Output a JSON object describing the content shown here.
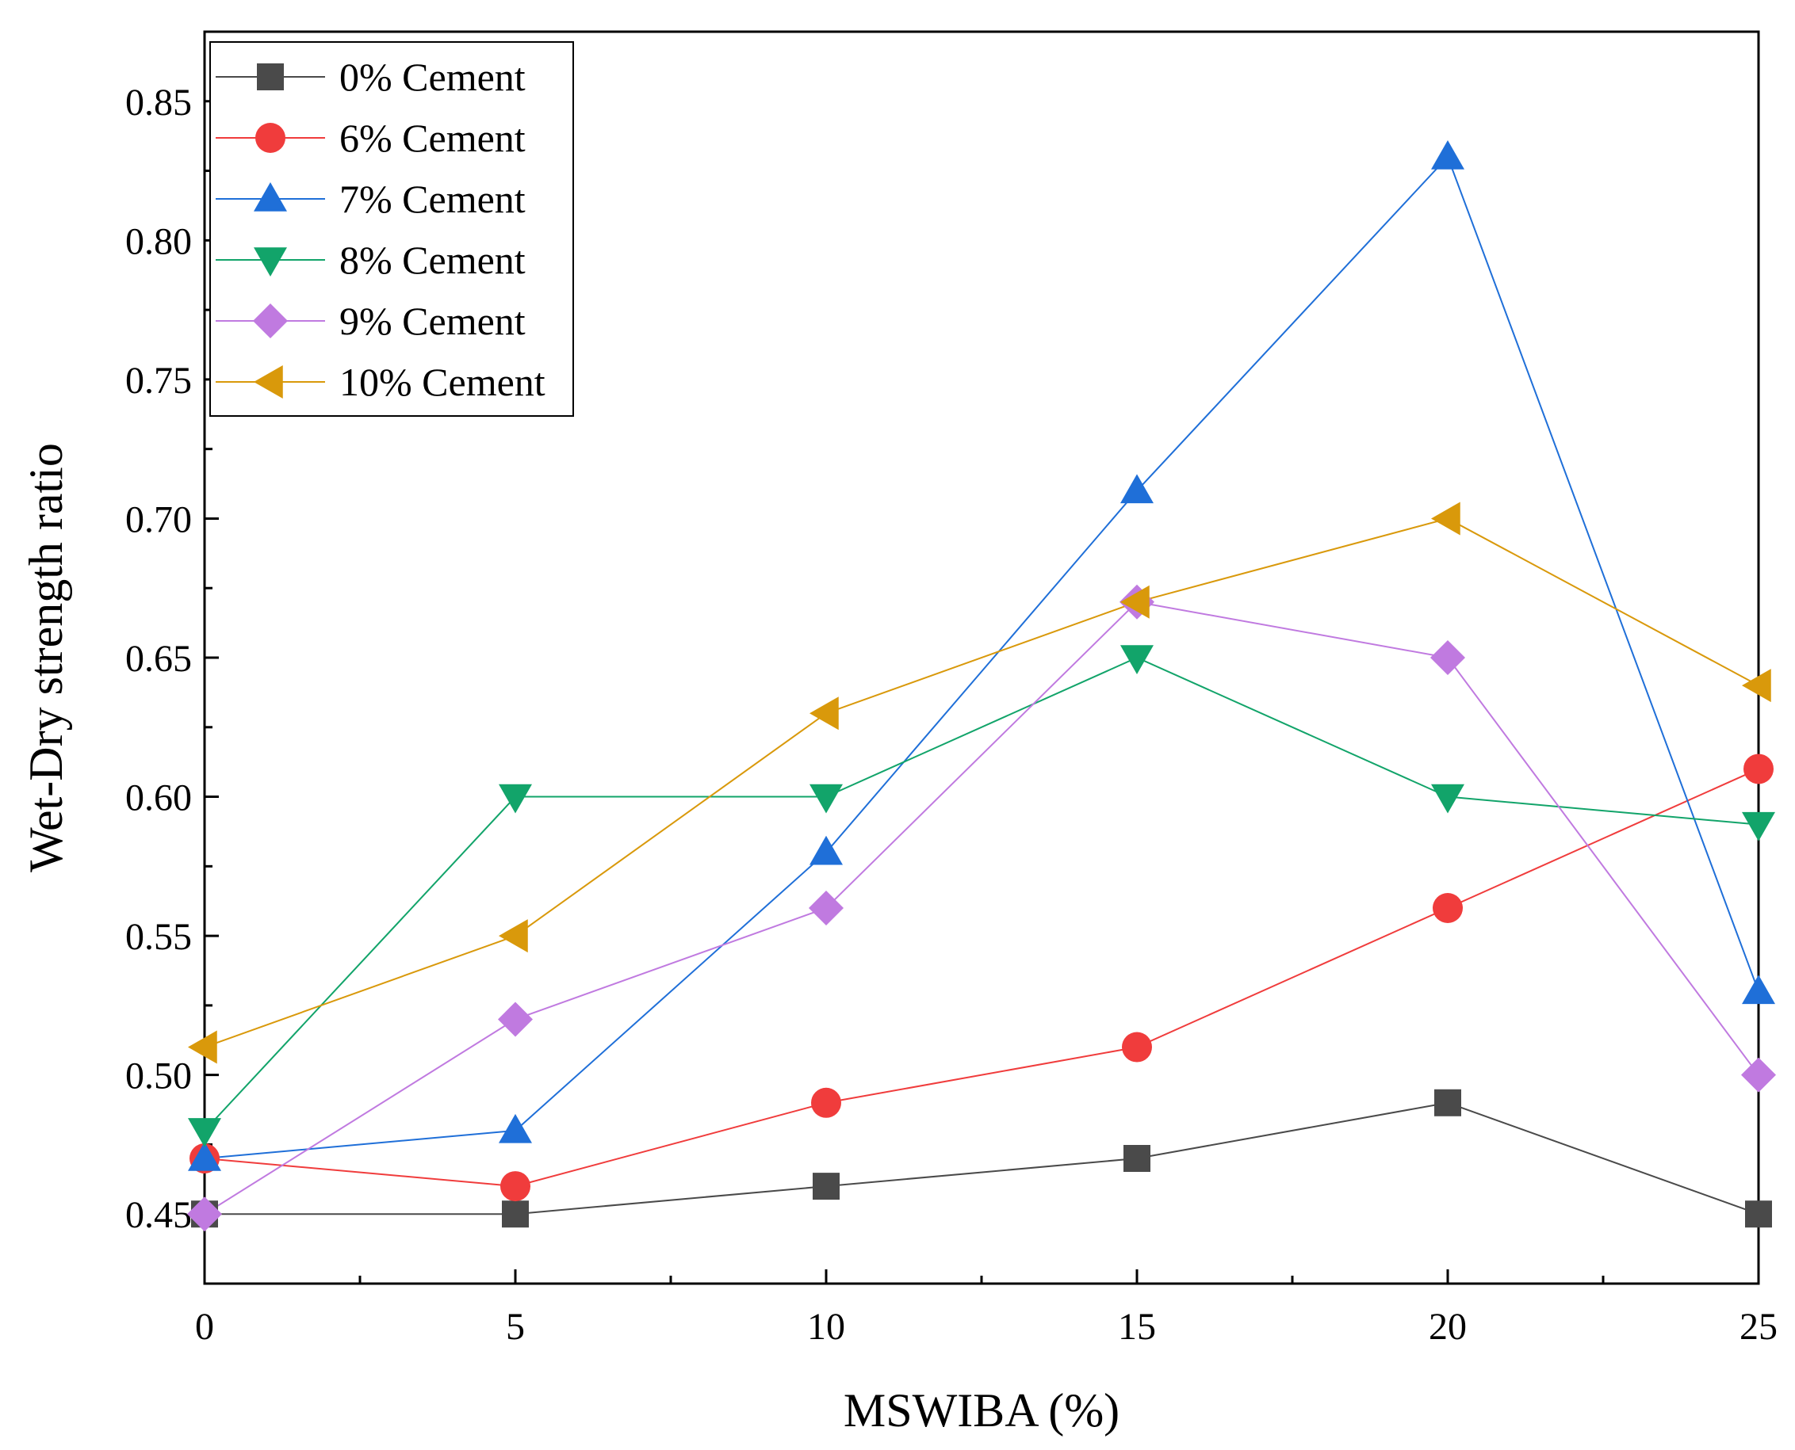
{
  "chart_data": {
    "type": "line",
    "title": "",
    "xlabel": "MSWIBA (%)",
    "ylabel": "Wet-Dry strength ratio",
    "x": [
      0,
      5,
      10,
      15,
      20,
      25
    ],
    "xlim": [
      0,
      25
    ],
    "ylim": [
      0.425,
      0.875
    ],
    "xticks": [
      0,
      5,
      10,
      15,
      20,
      25
    ],
    "yticks": [
      0.45,
      0.5,
      0.55,
      0.6,
      0.65,
      0.7,
      0.75,
      0.8,
      0.85
    ],
    "xtick_labels": [
      "0",
      "5",
      "10",
      "15",
      "20",
      "25"
    ],
    "ytick_labels": [
      "0.45",
      "0.50",
      "0.55",
      "0.60",
      "0.65",
      "0.70",
      "0.75",
      "0.80",
      "0.85"
    ],
    "grid": false,
    "legend_position": "top-left",
    "series": [
      {
        "name": "0% Cement",
        "marker": "square",
        "color": "#4a4a4a",
        "values": [
          0.45,
          0.45,
          0.46,
          0.47,
          0.49,
          0.45
        ]
      },
      {
        "name": "6% Cement",
        "marker": "circle",
        "color": "#f03c3c",
        "values": [
          0.47,
          0.46,
          0.49,
          0.51,
          0.56,
          0.61
        ]
      },
      {
        "name": "7% Cement",
        "marker": "triangle-up",
        "color": "#1f6fd8",
        "values": [
          0.47,
          0.48,
          0.58,
          0.71,
          0.83,
          0.53
        ]
      },
      {
        "name": "8% Cement",
        "marker": "triangle-down",
        "color": "#12a46a",
        "values": [
          0.48,
          0.6,
          0.6,
          0.65,
          0.6,
          0.59
        ]
      },
      {
        "name": "9% Cement",
        "marker": "diamond",
        "color": "#c07ae0",
        "values": [
          0.45,
          0.52,
          0.56,
          0.67,
          0.65,
          0.5
        ]
      },
      {
        "name": "10% Cement",
        "marker": "triangle-left",
        "color": "#d9990b",
        "values": [
          0.51,
          0.55,
          0.63,
          0.67,
          0.7,
          0.64
        ]
      }
    ]
  }
}
